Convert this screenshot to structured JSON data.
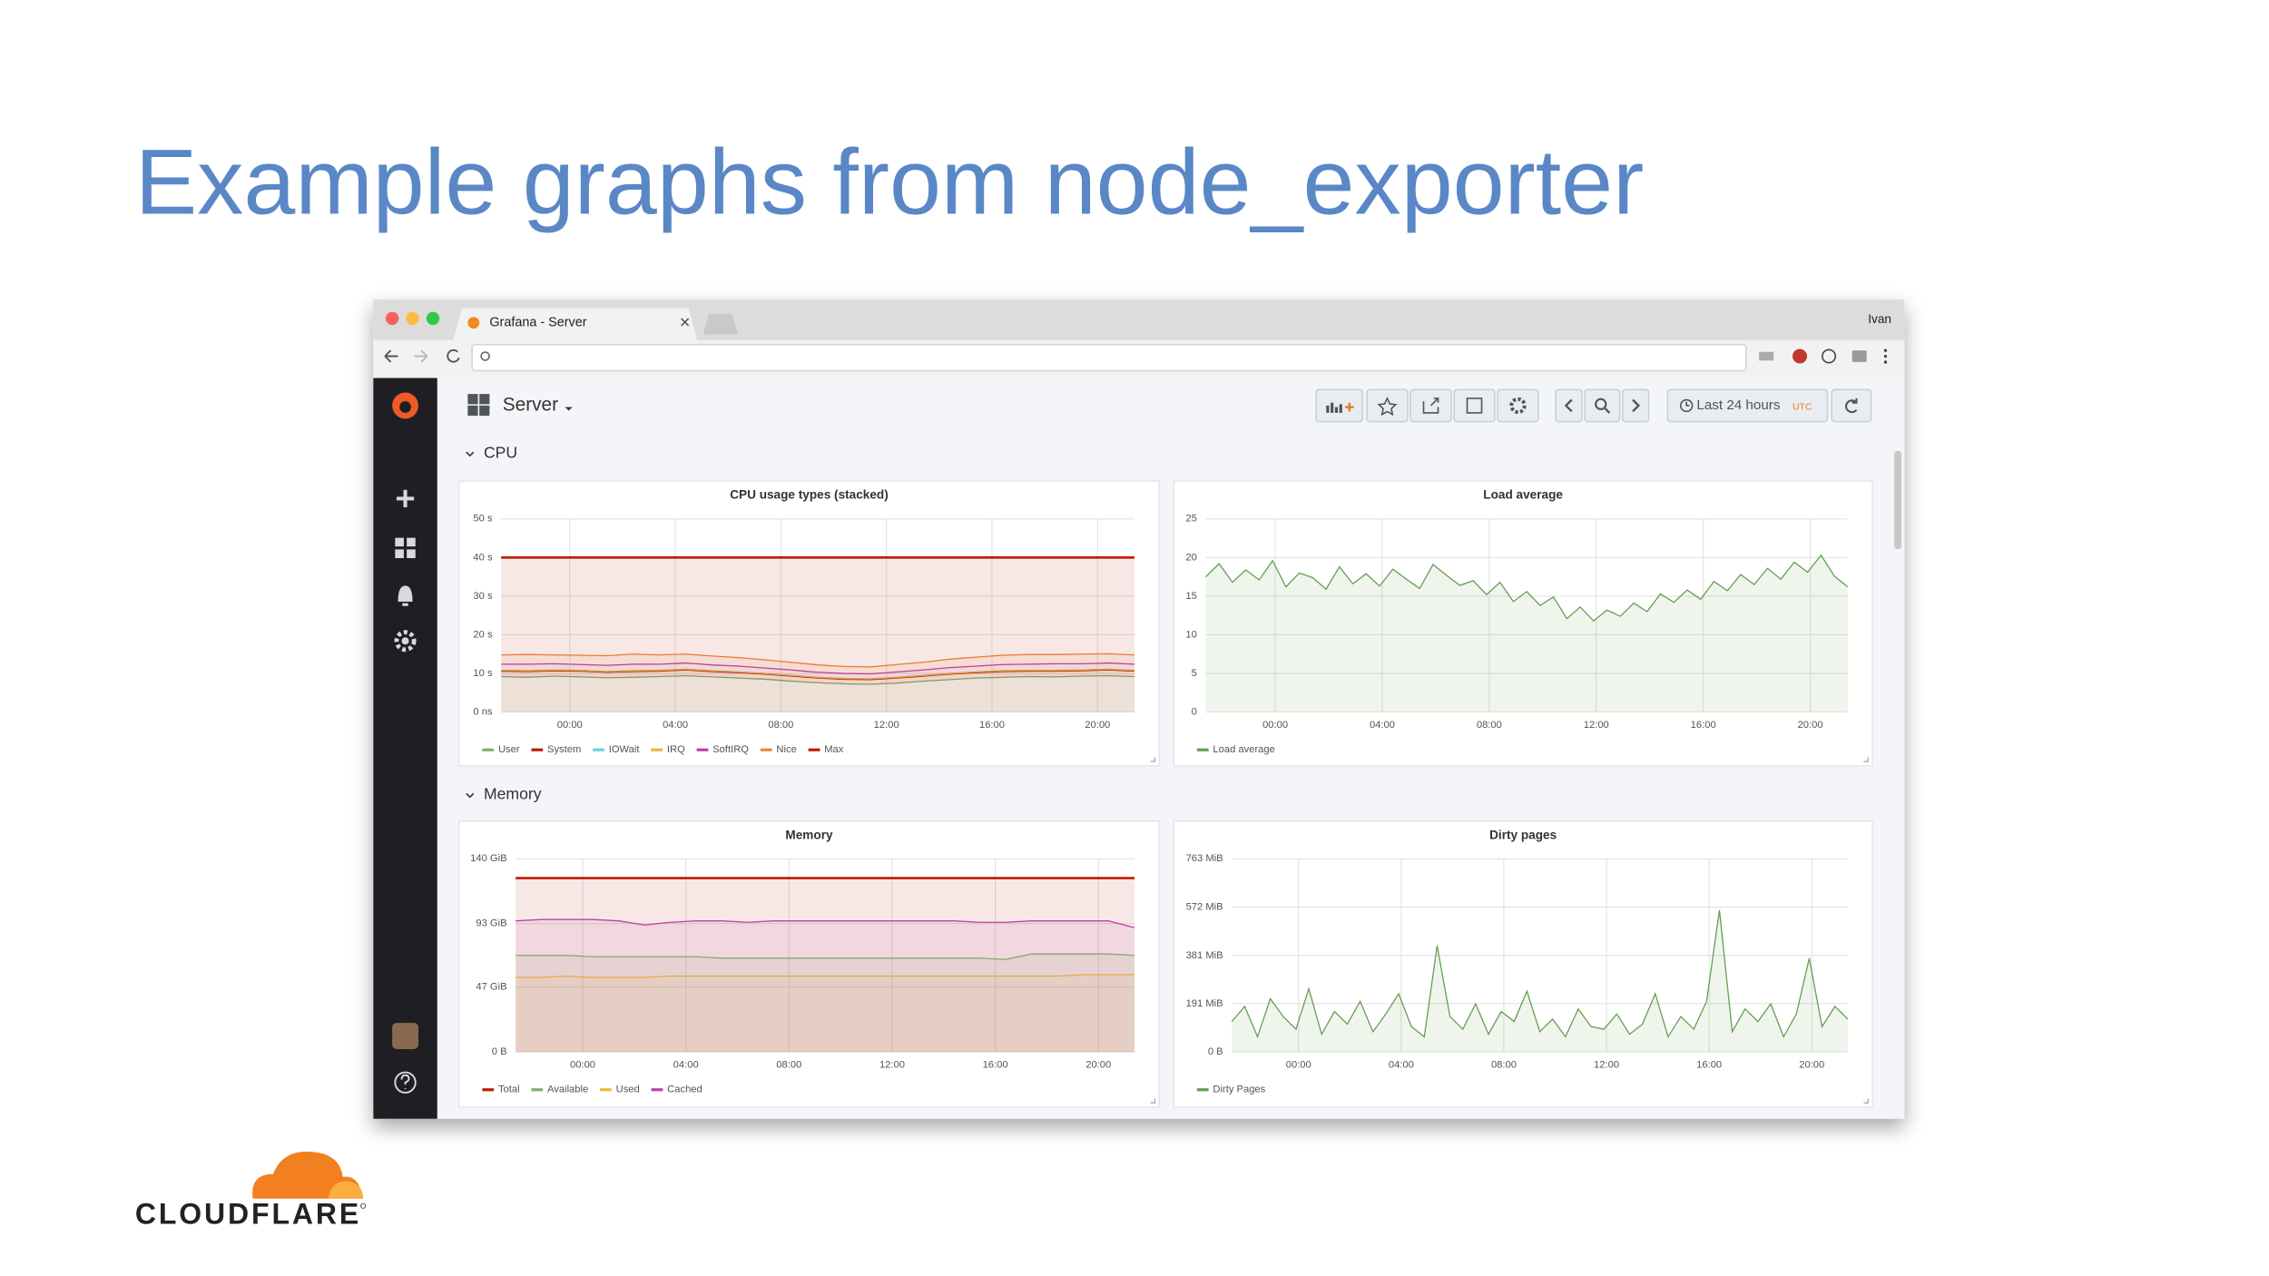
{
  "slide": {
    "title": "Example graphs from node_exporter",
    "logo": "CLOUDFLARE"
  },
  "browser": {
    "tab_title": "Grafana - Server",
    "user": "Ivan"
  },
  "dashboard": {
    "title": "Server",
    "time_range": "Last 24 hours",
    "timezone": "UTC",
    "rows": [
      "CPU",
      "Memory"
    ]
  },
  "chart_data": [
    {
      "type": "line",
      "title": "CPU usage types (stacked)",
      "stacked": true,
      "grid": true,
      "legend": "bottom-left",
      "x": [
        -2.6,
        -1.6,
        -0.6,
        0.4,
        1.4,
        2.4,
        3.4,
        4.4,
        5.4,
        6.4,
        7.4,
        8.4,
        9.4,
        10.4,
        11.4,
        12.4,
        13.4,
        14.4,
        15.4,
        16.4,
        17.4,
        18.4,
        19.4,
        20.4,
        21.4
      ],
      "xlim": [
        -2.6,
        21.4
      ],
      "ylim": [
        0,
        50
      ],
      "xticks": [
        {
          "value": 0,
          "label": "00:00"
        },
        {
          "value": 4,
          "label": "04:00"
        },
        {
          "value": 8,
          "label": "08:00"
        },
        {
          "value": 12,
          "label": "12:00"
        },
        {
          "value": 16,
          "label": "16:00"
        },
        {
          "value": 20,
          "label": "20:00"
        }
      ],
      "yticks": [
        {
          "value": 0,
          "label": "0 ns"
        },
        {
          "value": 10,
          "label": "10 s"
        },
        {
          "value": 20,
          "label": "20 s"
        },
        {
          "value": 30,
          "label": "30 s"
        },
        {
          "value": 40,
          "label": "40 s"
        },
        {
          "value": 50,
          "label": "50 s"
        }
      ],
      "series": [
        {
          "name": "User",
          "color": "#7eb26d",
          "values": [
            9.2,
            9.0,
            9.3,
            9.1,
            8.9,
            9.0,
            9.2,
            9.4,
            9.1,
            8.8,
            8.5,
            8.0,
            7.6,
            7.3,
            7.2,
            7.5,
            8.0,
            8.4,
            8.8,
            9.0,
            9.2,
            9.1,
            9.3,
            9.4,
            9.2
          ]
        },
        {
          "name": "System",
          "color": "#bf1b00",
          "values": [
            1.4,
            1.5,
            1.4,
            1.5,
            1.4,
            1.5,
            1.4,
            1.5,
            1.4,
            1.4,
            1.3,
            1.3,
            1.2,
            1.2,
            1.2,
            1.3,
            1.3,
            1.4,
            1.4,
            1.5,
            1.4,
            1.5,
            1.4,
            1.5,
            1.4
          ]
        },
        {
          "name": "IOWait",
          "color": "#6ed0e0",
          "values": [
            0.2,
            0.2,
            0.2,
            0.2,
            0.2,
            0.2,
            0.2,
            0.2,
            0.2,
            0.2,
            0.2,
            0.2,
            0.2,
            0.2,
            0.2,
            0.2,
            0.2,
            0.2,
            0.2,
            0.2,
            0.2,
            0.2,
            0.2,
            0.2,
            0.2
          ]
        },
        {
          "name": "IRQ",
          "color": "#eab839",
          "values": [
            0,
            0,
            0,
            0,
            0,
            0,
            0,
            0,
            0,
            0,
            0,
            0,
            0,
            0,
            0,
            0,
            0,
            0,
            0,
            0,
            0,
            0,
            0,
            0,
            0
          ]
        },
        {
          "name": "SoftIRQ",
          "color": "#ba43a6",
          "values": [
            1.6,
            1.7,
            1.6,
            1.5,
            1.6,
            1.7,
            1.6,
            1.6,
            1.5,
            1.5,
            1.4,
            1.4,
            1.3,
            1.3,
            1.3,
            1.4,
            1.4,
            1.5,
            1.5,
            1.6,
            1.6,
            1.7,
            1.6,
            1.6,
            1.6
          ]
        },
        {
          "name": "Nice",
          "color": "#ef843c",
          "values": [
            2.4,
            2.5,
            2.3,
            2.4,
            2.5,
            2.6,
            2.4,
            2.3,
            2.3,
            2.2,
            2.1,
            2.0,
            1.9,
            1.8,
            1.8,
            1.9,
            2.0,
            2.2,
            2.3,
            2.4,
            2.5,
            2.4,
            2.5,
            2.4,
            2.4
          ]
        },
        {
          "name": "Max",
          "color": "#bf1b00",
          "stack": false,
          "values": [
            40,
            40,
            40,
            40,
            40,
            40,
            40,
            40,
            40,
            40,
            40,
            40,
            40,
            40,
            40,
            40,
            40,
            40,
            40,
            40,
            40,
            40,
            40,
            40,
            40
          ]
        }
      ]
    },
    {
      "type": "line",
      "title": "Load average",
      "grid": true,
      "legend": "bottom-left",
      "x": [
        -2.6,
        -2.1,
        -1.6,
        -1.1,
        -0.6,
        -0.1,
        0.4,
        0.9,
        1.4,
        1.9,
        2.4,
        2.9,
        3.4,
        3.9,
        4.4,
        4.9,
        5.4,
        5.9,
        6.4,
        6.9,
        7.4,
        7.9,
        8.4,
        8.9,
        9.4,
        9.9,
        10.4,
        10.9,
        11.4,
        11.9,
        12.4,
        12.9,
        13.4,
        13.9,
        14.4,
        14.9,
        15.4,
        15.9,
        16.4,
        16.9,
        17.4,
        17.9,
        18.4,
        18.9,
        19.4,
        19.9,
        20.4,
        20.9,
        21.4
      ],
      "xlim": [
        -2.6,
        21.4
      ],
      "ylim": [
        0,
        25
      ],
      "xticks": [
        {
          "value": 0,
          "label": "00:00"
        },
        {
          "value": 4,
          "label": "04:00"
        },
        {
          "value": 8,
          "label": "08:00"
        },
        {
          "value": 12,
          "label": "12:00"
        },
        {
          "value": 16,
          "label": "16:00"
        },
        {
          "value": 20,
          "label": "20:00"
        }
      ],
      "yticks": [
        0,
        5,
        10,
        15,
        20,
        25
      ],
      "series": [
        {
          "name": "Load average",
          "color": "#629e51",
          "values": [
            17.5,
            19.2,
            16.8,
            18.4,
            17.1,
            19.6,
            16.2,
            18.0,
            17.4,
            15.9,
            18.8,
            16.6,
            17.9,
            16.3,
            18.5,
            17.2,
            16.0,
            19.1,
            17.7,
            16.4,
            17.0,
            15.2,
            16.8,
            14.3,
            15.6,
            13.8,
            14.9,
            12.1,
            13.6,
            11.8,
            13.2,
            12.4,
            14.1,
            13.0,
            15.3,
            14.2,
            15.8,
            14.6,
            16.9,
            15.7,
            17.8,
            16.5,
            18.6,
            17.2,
            19.4,
            18.1,
            20.3,
            17.6,
            16.2
          ]
        }
      ]
    },
    {
      "type": "line",
      "title": "Memory",
      "grid": true,
      "legend": "bottom-left",
      "x": [
        -2.6,
        -1.6,
        -0.6,
        0.4,
        1.4,
        2.4,
        3.4,
        4.4,
        5.4,
        6.4,
        7.4,
        8.4,
        9.4,
        10.4,
        11.4,
        12.4,
        13.4,
        14.4,
        15.4,
        16.4,
        17.4,
        18.4,
        19.4,
        20.4,
        21.4
      ],
      "xlim": [
        -2.6,
        21.4
      ],
      "ylim": [
        0,
        140
      ],
      "xticks": [
        {
          "value": 0,
          "label": "00:00"
        },
        {
          "value": 4,
          "label": "04:00"
        },
        {
          "value": 8,
          "label": "08:00"
        },
        {
          "value": 12,
          "label": "12:00"
        },
        {
          "value": 16,
          "label": "16:00"
        },
        {
          "value": 20,
          "label": "20:00"
        }
      ],
      "yticks": [
        {
          "value": 0,
          "label": "0 B"
        },
        {
          "value": 47,
          "label": "47 GiB"
        },
        {
          "value": 93,
          "label": "93 GiB"
        },
        {
          "value": 140,
          "label": "140 GiB"
        }
      ],
      "series": [
        {
          "name": "Total",
          "color": "#bf1b00",
          "values": [
            126,
            126,
            126,
            126,
            126,
            126,
            126,
            126,
            126,
            126,
            126,
            126,
            126,
            126,
            126,
            126,
            126,
            126,
            126,
            126,
            126,
            126,
            126,
            126,
            126
          ]
        },
        {
          "name": "Available",
          "color": "#7eb26d",
          "values": [
            70,
            70,
            70,
            69,
            69,
            69,
            69,
            69,
            68,
            68,
            68,
            68,
            68,
            68,
            68,
            68,
            68,
            68,
            68,
            67,
            71,
            71,
            71,
            71,
            70
          ]
        },
        {
          "name": "Used",
          "color": "#eab839",
          "values": [
            54,
            54,
            55,
            54,
            54,
            54,
            55,
            55,
            55,
            55,
            55,
            55,
            55,
            55,
            55,
            55,
            55,
            55,
            55,
            55,
            55,
            55,
            56,
            56,
            56
          ]
        },
        {
          "name": "Cached",
          "color": "#ba43a6",
          "values": [
            95,
            96,
            96,
            96,
            95,
            92,
            94,
            95,
            95,
            94,
            95,
            95,
            95,
            95,
            95,
            95,
            95,
            95,
            94,
            94,
            95,
            95,
            95,
            95,
            90
          ]
        }
      ]
    },
    {
      "type": "line",
      "title": "Dirty pages",
      "grid": true,
      "legend": "bottom-left",
      "x": [
        -2.6,
        -2.1,
        -1.6,
        -1.1,
        -0.6,
        -0.1,
        0.4,
        0.9,
        1.4,
        1.9,
        2.4,
        2.9,
        3.4,
        3.9,
        4.4,
        4.9,
        5.4,
        5.9,
        6.4,
        6.9,
        7.4,
        7.9,
        8.4,
        8.9,
        9.4,
        9.9,
        10.4,
        10.9,
        11.4,
        11.9,
        12.4,
        12.9,
        13.4,
        13.9,
        14.4,
        14.9,
        15.4,
        15.9,
        16.4,
        16.9,
        17.4,
        17.9,
        18.4,
        18.9,
        19.4,
        19.9,
        20.4,
        20.9,
        21.4
      ],
      "xlim": [
        -2.6,
        21.4
      ],
      "ylim": [
        0,
        763
      ],
      "xticks": [
        {
          "value": 0,
          "label": "00:00"
        },
        {
          "value": 4,
          "label": "04:00"
        },
        {
          "value": 8,
          "label": "08:00"
        },
        {
          "value": 12,
          "label": "12:00"
        },
        {
          "value": 16,
          "label": "16:00"
        },
        {
          "value": 20,
          "label": "20:00"
        }
      ],
      "yticks": [
        {
          "value": 0,
          "label": "0 B"
        },
        {
          "value": 191,
          "label": "191 MiB"
        },
        {
          "value": 381,
          "label": "381 MiB"
        },
        {
          "value": 572,
          "label": "572 MiB"
        },
        {
          "value": 763,
          "label": "763 MiB"
        }
      ],
      "series": [
        {
          "name": "Dirty Pages",
          "color": "#629e51",
          "values": [
            120,
            180,
            60,
            210,
            140,
            90,
            250,
            70,
            160,
            110,
            200,
            80,
            150,
            230,
            100,
            60,
            420,
            140,
            90,
            190,
            70,
            160,
            120,
            240,
            80,
            130,
            60,
            170,
            100,
            90,
            150,
            70,
            110,
            230,
            60,
            140,
            90,
            200,
            560,
            80,
            170,
            120,
            190,
            60,
            150,
            370,
            100,
            180,
            130
          ]
        }
      ]
    }
  ]
}
